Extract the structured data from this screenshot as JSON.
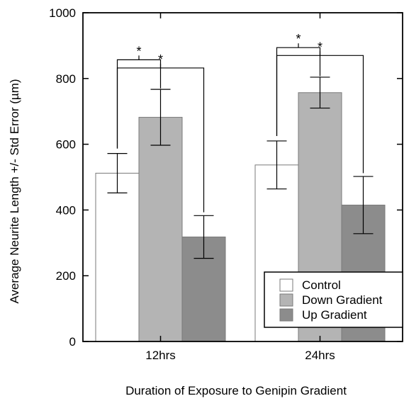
{
  "chart_data": {
    "type": "bar",
    "title": "",
    "xlabel": "Duration of Exposure to Genipin Gradient",
    "ylabel": "Average Neurite Length +/- Std Error (µm)",
    "ylim": [
      0,
      1000
    ],
    "yticks": [
      "0",
      "200",
      "400",
      "600",
      "800",
      "1000"
    ],
    "categories": [
      "12hrs",
      "24hrs"
    ],
    "series": [
      {
        "name": "Control",
        "color": "#ffffff",
        "values": [
          512,
          537
        ],
        "errors": [
          60,
          73
        ]
      },
      {
        "name": "Down Gradient",
        "color": "#b4b4b4",
        "values": [
          682,
          757
        ],
        "errors": [
          85,
          47
        ]
      },
      {
        "name": "Up Gradient",
        "color": "#8c8c8c",
        "values": [
          318,
          415
        ],
        "errors": [
          65,
          87
        ]
      }
    ],
    "legend_position": "bottom-right",
    "significance": [
      {
        "category_index": 0,
        "from_series": 0,
        "to_series": 1,
        "label": "*"
      },
      {
        "category_index": 0,
        "from_series": 0,
        "to_series": 2,
        "label": "*"
      },
      {
        "category_index": 1,
        "from_series": 0,
        "to_series": 1,
        "label": "*"
      },
      {
        "category_index": 1,
        "from_series": 0,
        "to_series": 2,
        "label": "*"
      }
    ]
  }
}
